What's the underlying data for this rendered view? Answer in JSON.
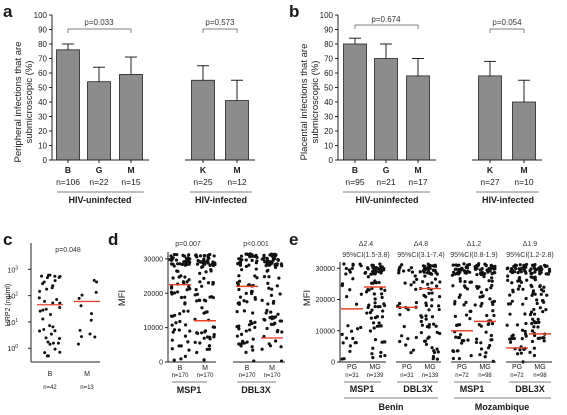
{
  "chart_data": [
    {
      "panel": "a",
      "type": "bar",
      "ylabel_line1": "Peripheral infections that are",
      "ylabel_line2": "submicroscopic (%)",
      "ylim": [
        0,
        100
      ],
      "yticks": [
        "0",
        "10",
        "20",
        "30",
        "40",
        "50",
        "60",
        "70",
        "80",
        "90",
        "100"
      ],
      "bars": [
        {
          "category": "B",
          "n": "n=106",
          "value": 76,
          "err": 4
        },
        {
          "category": "G",
          "n": "n=22",
          "value": 54,
          "err": 10
        },
        {
          "category": "M",
          "n": "n=15",
          "value": 59,
          "err": 12
        },
        {
          "category": "K",
          "n": "n=25",
          "value": 55,
          "err": 10
        },
        {
          "category": "M",
          "n": "n=12",
          "value": 41,
          "err": 14
        }
      ],
      "groups": [
        "HIV-uninfected",
        "HIV-infected"
      ],
      "comparisons": [
        "p=0.033",
        "p=0.573"
      ]
    },
    {
      "panel": "b",
      "type": "bar",
      "ylabel_line1": "Placental infections that are",
      "ylabel_line2": "submicroscopic (%)",
      "ylim": [
        0,
        100
      ],
      "yticks": [
        "0",
        "10",
        "20",
        "30",
        "40",
        "50",
        "60",
        "70",
        "80",
        "90",
        "100"
      ],
      "bars": [
        {
          "category": "B",
          "n": "n=95",
          "value": 80,
          "err": 4
        },
        {
          "category": "G",
          "n": "n=21",
          "value": 70,
          "err": 10
        },
        {
          "category": "M",
          "n": "n=17",
          "value": 58,
          "err": 12
        },
        {
          "category": "K",
          "n": "n=27",
          "value": 58,
          "err": 10
        },
        {
          "category": "M",
          "n": "n=10",
          "value": 40,
          "err": 15
        }
      ],
      "groups": [
        "HIV-uninfected",
        "HIV-infected"
      ],
      "comparisons": [
        "p=0.674",
        "p=0.054"
      ]
    },
    {
      "panel": "c",
      "type": "scatter",
      "ylabel": "HRP2 (ng/ml)",
      "yscale": "log",
      "ylim": [
        0.3,
        10000
      ],
      "yticks": [
        {
          "base": "10",
          "exp": "0",
          "value": 1
        },
        {
          "base": "10",
          "exp": "1",
          "value": 10
        },
        {
          "base": "10",
          "exp": "2",
          "value": 100
        },
        {
          "base": "10",
          "exp": "3",
          "value": 1000
        }
      ],
      "groups": [
        {
          "category": "B",
          "n": "n=42",
          "median": 45
        },
        {
          "category": "M",
          "n": "n=13",
          "median": 60
        }
      ],
      "p": "p=0.048"
    },
    {
      "panel": "d",
      "type": "scatter",
      "ylabel": "MFI",
      "ylim": [
        0,
        32000
      ],
      "yticks": [
        "0",
        "10000",
        "20000",
        "30000"
      ],
      "groups": [
        {
          "category": "B",
          "n": "n=170",
          "median": 22500
        },
        {
          "category": "M",
          "n": "n=170",
          "median": 12000
        },
        {
          "category": "B",
          "n": "n=170",
          "median": 22000
        },
        {
          "category": "M",
          "n": "n=170",
          "median": 7000
        }
      ],
      "antigens": [
        "MSP1",
        "DBL3X"
      ],
      "pvalues": [
        "p=0.007",
        "p<0.001"
      ]
    },
    {
      "panel": "e",
      "type": "scatter",
      "ylabel": "MFI",
      "ylim": [
        0,
        32000
      ],
      "yticks": [
        "0",
        "10000",
        "20000",
        "30000"
      ],
      "groups": [
        {
          "category": "PG",
          "n": "n=31",
          "median": 17000
        },
        {
          "category": "MG",
          "n": "n=139",
          "median": 24000
        },
        {
          "category": "PG",
          "n": "n=31",
          "median": 17500
        },
        {
          "category": "MG",
          "n": "n=139",
          "median": 23500
        },
        {
          "category": "PG",
          "n": "n=72",
          "median": 10000
        },
        {
          "category": "MG",
          "n": "n=98",
          "median": 13000
        },
        {
          "category": "PG",
          "n": "n=72",
          "median": 4500
        },
        {
          "category": "MG",
          "n": "n=98",
          "median": 9000
        }
      ],
      "antigens": [
        "MSP1",
        "DBL3X",
        "MSP1",
        "DBL3X"
      ],
      "sites": [
        "Benin",
        "Mozambique"
      ],
      "deltas": [
        "Δ2.4",
        "Δ4.8",
        "Δ1.2",
        "Δ1.9"
      ],
      "cis": [
        "95%CI(1.5-3.8)",
        "95%CI(3.1-7.4)",
        "95%CI(0.8-1.9)",
        "95%CI(1.2-2.8)"
      ]
    }
  ],
  "colors": {
    "bar": "#8c8c8c",
    "median": "#e8432a",
    "dot": "#111111"
  }
}
